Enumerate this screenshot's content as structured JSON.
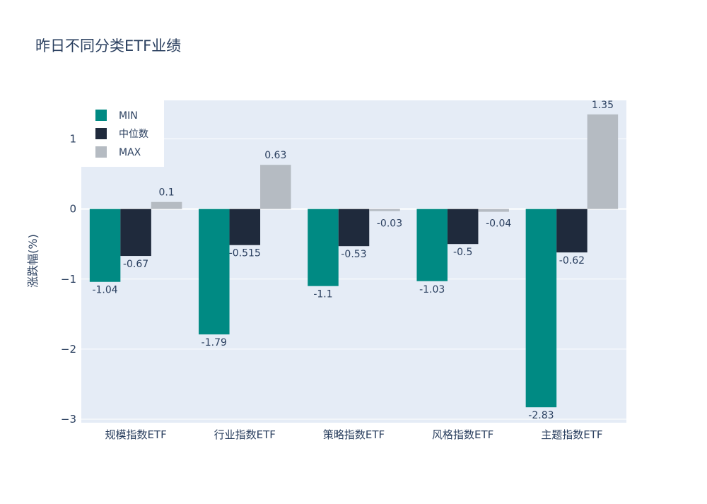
{
  "chart_data": {
    "type": "bar",
    "title": "昨日不同分类ETF业绩",
    "xlabel": "",
    "ylabel": "涨跌幅(%)",
    "categories": [
      "规模指数ETF",
      "行业指数ETF",
      "策略指数ETF",
      "风格指数ETF",
      "主题指数ETF"
    ],
    "series": [
      {
        "name": "MIN",
        "color": "#008a83",
        "values": [
          -1.04,
          -1.79,
          -1.1,
          -1.03,
          -2.83
        ],
        "labels": [
          "-1.04",
          "-1.79",
          "-1.1",
          "-1.03",
          "-2.83"
        ]
      },
      {
        "name": "中位数",
        "color": "#1f2a3c",
        "values": [
          -0.67,
          -0.515,
          -0.53,
          -0.5,
          -0.62
        ],
        "labels": [
          "-0.67",
          "-0.515",
          "-0.53",
          "-0.5",
          "-0.62"
        ]
      },
      {
        "name": "MAX",
        "color": "#b5bbc2",
        "values": [
          0.1,
          0.63,
          -0.03,
          -0.04,
          1.35
        ],
        "labels": [
          "0.1",
          "0.63",
          "-0.03",
          "-0.04",
          "1.35"
        ]
      }
    ],
    "ylim": [
      -3.05,
      1.55
    ],
    "yticks": [
      1,
      0,
      -1,
      -2,
      -3
    ],
    "ytick_labels": [
      "1",
      "0",
      "−1",
      "−2",
      "−3"
    ],
    "grid": true,
    "legend_position": "top-left",
    "plot_background": "#e5ecf6"
  }
}
